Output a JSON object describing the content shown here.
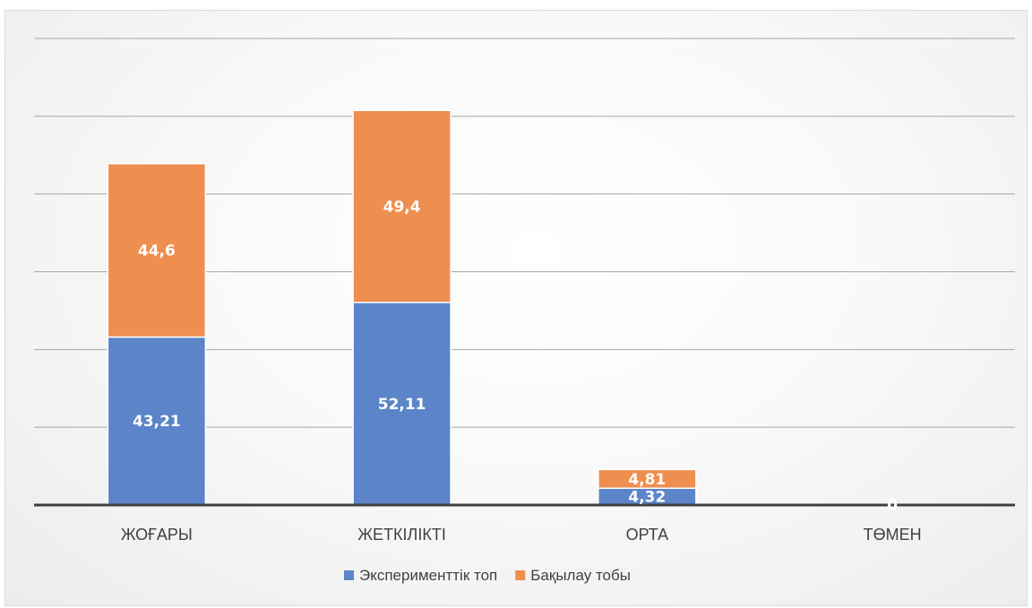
{
  "chart_data": {
    "type": "bar",
    "stacked": true,
    "categories": [
      "ЖОҒАРЫ",
      "ЖЕТКІЛІКТІ",
      "ОРТА",
      "ТӨМЕН"
    ],
    "series": [
      {
        "name": "Эксперименттік топ",
        "color": "#5b84c9",
        "values": [
          43.21,
          52.11,
          4.32,
          0
        ],
        "labels": [
          "43,21",
          "52,11",
          "4,32",
          "0"
        ]
      },
      {
        "name": "Бақылау тобы",
        "color": "#ee8f50",
        "values": [
          44.6,
          49.4,
          4.81,
          0
        ],
        "labels": [
          "44,6",
          "49,4",
          "4,81",
          ""
        ]
      }
    ],
    "ylim": [
      0,
      120
    ],
    "grid": true,
    "legend": "bottom"
  }
}
